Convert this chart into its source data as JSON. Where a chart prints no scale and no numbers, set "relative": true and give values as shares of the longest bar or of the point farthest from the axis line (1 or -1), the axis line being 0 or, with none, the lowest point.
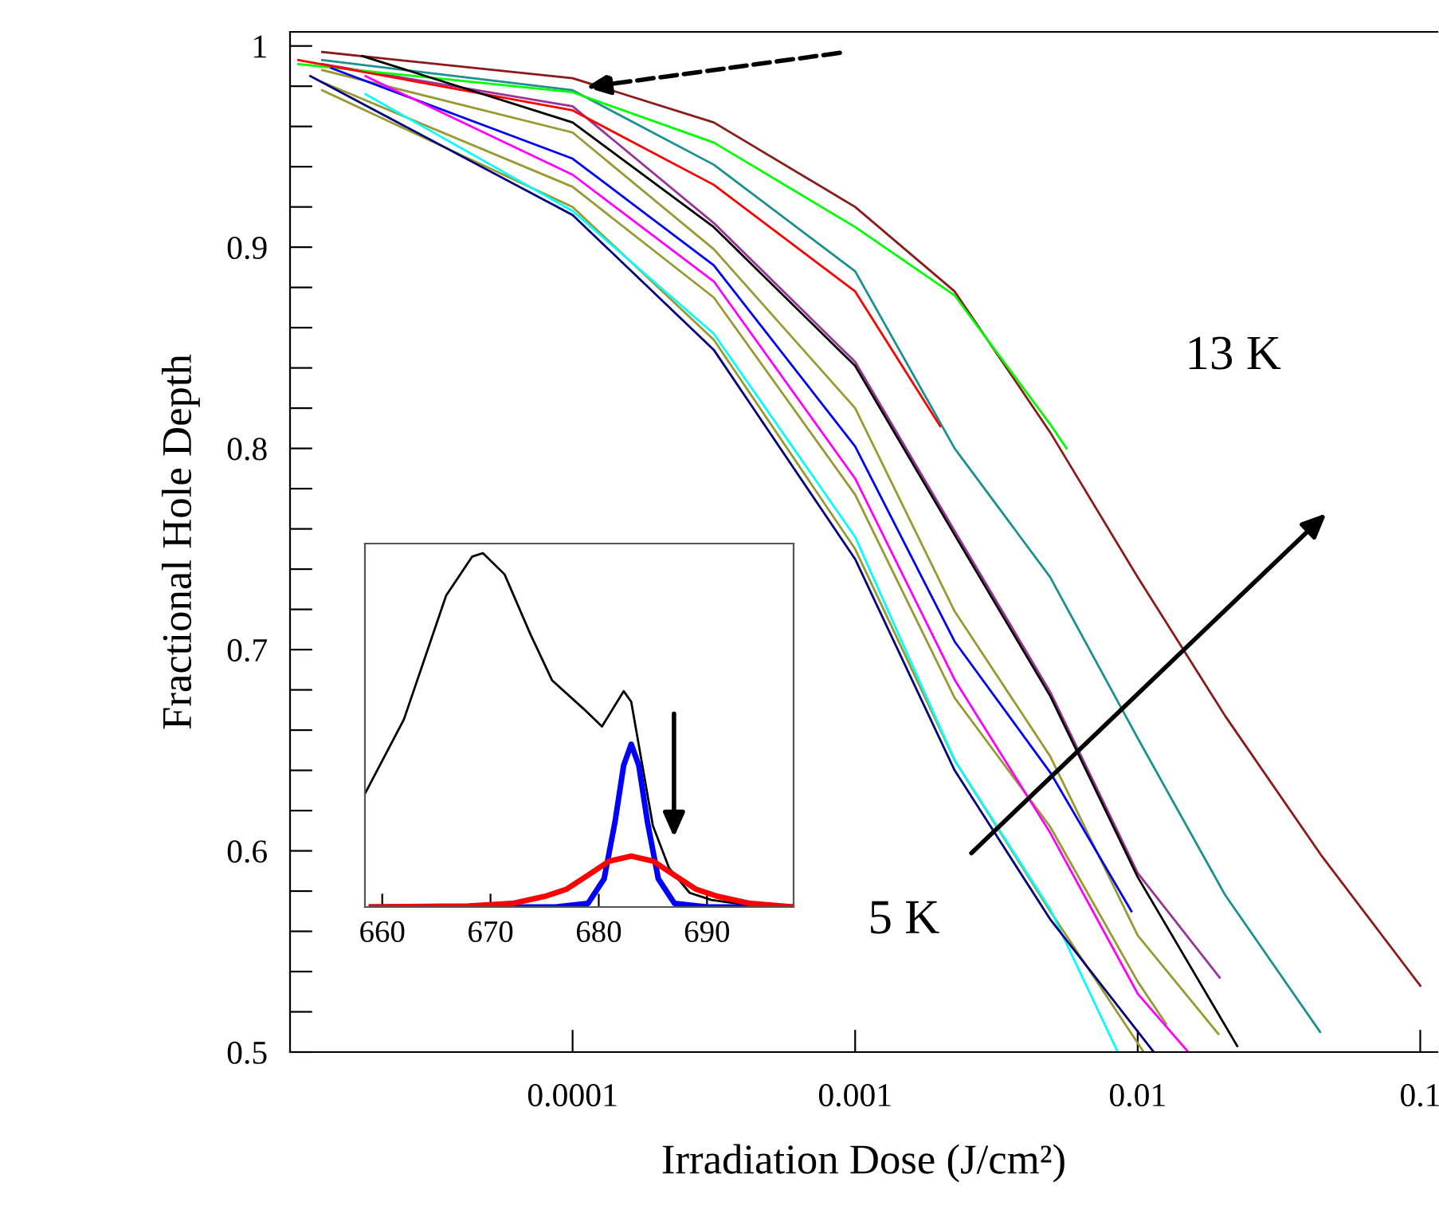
{
  "chart_data": [
    {
      "type": "line",
      "xlabel": "Irradiation Dose (J/cm²)",
      "ylabel": "Fractional Hole Depth",
      "log": "x",
      "xlim": [
        1e-05,
        0.115
      ],
      "xticks": [
        {
          "value": 0.0001,
          "label": "0.0001"
        },
        {
          "value": 0.001,
          "label": "0.001"
        },
        {
          "value": 0.01,
          "label": "0.01"
        },
        {
          "value": 0.1,
          "label": "0.1"
        }
      ],
      "ylim": [
        0.5,
        1.007
      ],
      "yticks": [
        0.5,
        {
          "value": 0.52,
          "label": null
        },
        {
          "value": 0.54,
          "label": null
        },
        {
          "value": 0.56,
          "label": null
        },
        {
          "value": 0.58,
          "label": null
        },
        0.6,
        {
          "value": 0.62,
          "label": null
        },
        {
          "value": 0.64,
          "label": null
        },
        {
          "value": 0.66,
          "label": null
        },
        {
          "value": 0.68,
          "label": null
        },
        0.7,
        {
          "value": 0.72,
          "label": null
        },
        {
          "value": 0.74,
          "label": null
        },
        {
          "value": 0.76,
          "label": null
        },
        {
          "value": 0.78,
          "label": null
        },
        0.8,
        {
          "value": 0.82,
          "label": null
        },
        {
          "value": 0.84,
          "label": null
        },
        {
          "value": 0.86,
          "label": null
        },
        {
          "value": 0.88,
          "label": null
        },
        0.9,
        {
          "value": 0.92,
          "label": null
        },
        {
          "value": 0.94,
          "label": null
        },
        {
          "value": 0.96,
          "label": null
        },
        {
          "value": 0.98,
          "label": null
        },
        {
          "value": 1,
          "label": "1"
        }
      ],
      "grid": false,
      "legend": false,
      "marker": "none",
      "line_style": "solid",
      "annotations": [
        "13 K",
        "5 K"
      ],
      "series": [
        {
          "color": "#8b1a1a",
          "x": [
            1.3e-05,
            0.0001,
            0.000316,
            0.001,
            0.00225,
            0.0049,
            0.01,
            0.0204,
            0.0445,
            0.1
          ],
          "values": [
            0.997,
            0.984,
            0.962,
            0.92,
            0.878,
            0.808,
            0.736,
            0.667,
            0.598,
            0.533
          ]
        },
        {
          "color": "#1a9090",
          "x": [
            1.3e-05,
            0.0001,
            0.000316,
            0.001,
            0.00225,
            0.0049,
            0.01,
            0.0204,
            0.0442
          ],
          "values": [
            0.993,
            0.978,
            0.941,
            0.888,
            0.8,
            0.736,
            0.656,
            0.578,
            0.51
          ]
        },
        {
          "color": "#993399",
          "x": [
            1.3e-05,
            0.0001,
            0.000316,
            0.001,
            0.00225,
            0.0049,
            0.01,
            0.0195
          ],
          "values": [
            0.991,
            0.97,
            0.912,
            0.843,
            0.759,
            0.679,
            0.589,
            0.537
          ]
        },
        {
          "color": "#999933",
          "x": [
            1.3e-05,
            0.0001,
            0.000316,
            0.001,
            0.00225,
            0.0049,
            0.01,
            0.0193
          ],
          "values": [
            0.988,
            0.957,
            0.899,
            0.82,
            0.719,
            0.647,
            0.558,
            0.509
          ]
        },
        {
          "color": "#999933",
          "x": [
            1.3e-05,
            0.0001,
            0.000316,
            0.001,
            0.00225,
            0.0049,
            0.01,
            0.0126
          ],
          "values": [
            0.982,
            0.93,
            0.875,
            0.777,
            0.676,
            0.612,
            0.535,
            0.514
          ]
        },
        {
          "color": "#00ff00",
          "x": [
            1.07e-05,
            0.0001,
            0.000316,
            0.001,
            0.00225,
            0.0049,
            0.0056
          ],
          "values": [
            0.991,
            0.977,
            0.952,
            0.91,
            0.876,
            0.812,
            0.8
          ]
        },
        {
          "color": "#ff0000",
          "x": [
            1.07e-05,
            0.0001,
            0.000316,
            0.001,
            0.002
          ],
          "values": [
            0.993,
            0.968,
            0.931,
            0.878,
            0.811
          ]
        },
        {
          "color": "#000000",
          "x": [
            1.8e-05,
            0.0001,
            0.000316,
            0.001,
            0.00225,
            0.0049,
            0.01,
            0.0225
          ],
          "values": [
            0.995,
            0.962,
            0.91,
            0.841,
            0.757,
            0.677,
            0.587,
            0.503
          ]
        },
        {
          "color": "#0000ff",
          "x": [
            1.4e-05,
            0.0001,
            0.000316,
            0.001,
            0.00225,
            0.0049,
            0.0095
          ],
          "values": [
            0.989,
            0.944,
            0.891,
            0.801,
            0.704,
            0.639,
            0.57
          ]
        },
        {
          "color": "#ff00ff",
          "x": [
            1.85e-05,
            0.0001,
            0.000316,
            0.001,
            0.00225,
            0.0049,
            0.01,
            0.0151
          ],
          "values": [
            0.985,
            0.936,
            0.883,
            0.785,
            0.685,
            0.609,
            0.529,
            0.5
          ]
        },
        {
          "color": "#999933",
          "x": [
            1.3e-05,
            0.0001,
            0.000316,
            0.001,
            0.00225,
            0.0049,
            0.0105
          ],
          "values": [
            0.978,
            0.92,
            0.854,
            0.75,
            0.645,
            0.57,
            0.5
          ]
        },
        {
          "color": "#00ffff",
          "x": [
            1.85e-05,
            0.0001,
            0.000316,
            0.001,
            0.00225,
            0.0049,
            0.0085
          ],
          "values": [
            0.976,
            0.918,
            0.857,
            0.756,
            0.645,
            0.571,
            0.5
          ]
        },
        {
          "color": "#000080",
          "x": [
            1.18e-05,
            0.0001,
            0.000316,
            0.001,
            0.00225,
            0.0049,
            0.0114
          ],
          "values": [
            0.985,
            0.916,
            0.849,
            0.745,
            0.64,
            0.566,
            0.5
          ]
        }
      ]
    },
    {
      "type": "line",
      "relative": true,
      "xlim": [
        658.4,
        698
      ],
      "xticks": [
        660,
        670,
        680,
        690
      ],
      "tick_labels": "x",
      "grid": false,
      "legend": false,
      "marker": "none",
      "line_style": "solid",
      "series": [
        {
          "color": "#000000",
          "x": [
            658.4,
            662.0,
            665.9,
            668.3,
            669.3,
            671.3,
            673.7,
            675.7,
            678.6,
            680.3,
            681.3,
            682.3,
            683.0,
            683.8,
            685.0,
            686.5,
            688.4,
            690.4,
            692.8,
            697.9
          ],
          "values": [
            0.32,
            0.53,
            0.88,
            0.99,
            1.0,
            0.94,
            0.77,
            0.64,
            0.56,
            0.51,
            0.56,
            0.61,
            0.58,
            0.44,
            0.23,
            0.11,
            0.04,
            0.02,
            0.01,
            0.0
          ]
        },
        {
          "color": "#0000ff",
          "x": [
            659,
            676,
            679,
            680.5,
            681.5,
            682.3,
            683,
            683.7,
            684.5,
            685.5,
            687,
            690,
            698
          ],
          "values": [
            0.0,
            0.0,
            0.01,
            0.08,
            0.24,
            0.4,
            0.46,
            0.4,
            0.24,
            0.08,
            0.01,
            0.0,
            0.0
          ]
        },
        {
          "color": "#ff0000",
          "x": [
            659,
            668,
            672,
            675,
            677,
            679,
            681,
            683,
            685,
            687,
            689,
            691,
            694,
            698
          ],
          "values": [
            0.0,
            0.003,
            0.01,
            0.03,
            0.05,
            0.09,
            0.13,
            0.144,
            0.13,
            0.09,
            0.05,
            0.03,
            0.01,
            0.0
          ]
        }
      ]
    }
  ]
}
